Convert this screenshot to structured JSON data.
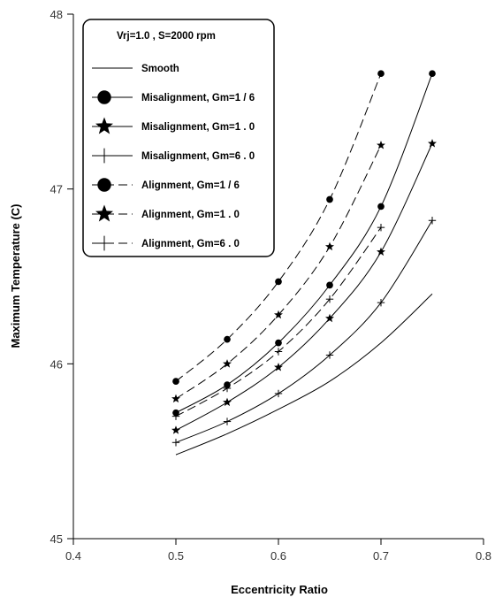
{
  "chart_data": {
    "type": "line",
    "title": "",
    "xlabel": "Eccentricity Ratio",
    "ylabel": "Maximum Temperature (C)",
    "xlim": [
      0.4,
      0.8
    ],
    "ylim": [
      45,
      48
    ],
    "x_ticks": [
      "0.4",
      "0.5",
      "0.6",
      "0.7",
      "0.8"
    ],
    "y_ticks": [
      "45",
      "46",
      "47",
      "48"
    ],
    "grid": false,
    "legend_placement": "top-left",
    "legend_header": "Vrj=1.0   ,  S=2000 rpm",
    "x": [
      0.5,
      0.55,
      0.6,
      0.65,
      0.7,
      0.75
    ],
    "series": [
      {
        "name": "Smooth",
        "marker": "none",
        "dash": "solid",
        "x": [
          0.5,
          0.55,
          0.6,
          0.65,
          0.7,
          0.75
        ],
        "values": [
          45.48,
          45.6,
          45.74,
          45.9,
          46.12,
          46.4
        ]
      },
      {
        "name": "Misalignment,  Gm=1 / 6",
        "marker": "circle",
        "dash": "solid",
        "x": [
          0.5,
          0.55,
          0.6,
          0.65,
          0.7,
          0.75
        ],
        "values": [
          45.72,
          45.88,
          46.12,
          46.45,
          46.9,
          47.66
        ]
      },
      {
        "name": "Misalignment,  Gm=1 . 0",
        "marker": "star",
        "dash": "solid",
        "x": [
          0.5,
          0.55,
          0.6,
          0.65,
          0.7,
          0.75
        ],
        "values": [
          45.62,
          45.78,
          45.98,
          46.26,
          46.64,
          47.26
        ]
      },
      {
        "name": "Misalignment,  Gm=6 . 0",
        "marker": "plus",
        "dash": "solid",
        "x": [
          0.5,
          0.55,
          0.6,
          0.65,
          0.7,
          0.75
        ],
        "values": [
          45.55,
          45.67,
          45.83,
          46.05,
          46.35,
          46.82
        ]
      },
      {
        "name": "Alignment,  Gm=1 / 6",
        "marker": "circle",
        "dash": "dashed",
        "x": [
          0.5,
          0.55,
          0.6,
          0.65,
          0.7
        ],
        "values": [
          45.9,
          46.14,
          46.47,
          46.94,
          47.66
        ]
      },
      {
        "name": "Alignment,  Gm=1 . 0",
        "marker": "star",
        "dash": "dashed",
        "x": [
          0.5,
          0.55,
          0.6,
          0.65,
          0.7
        ],
        "values": [
          45.8,
          46.0,
          46.28,
          46.67,
          47.25
        ]
      },
      {
        "name": "Alignment,  Gm=6 . 0",
        "marker": "plus",
        "dash": "dashed",
        "x": [
          0.5,
          0.55,
          0.6,
          0.65,
          0.7
        ],
        "values": [
          45.7,
          45.86,
          46.07,
          46.37,
          46.78
        ]
      }
    ],
    "colors": {
      "line": "#000000",
      "axis": "#000000",
      "background": "#ffffff"
    }
  }
}
